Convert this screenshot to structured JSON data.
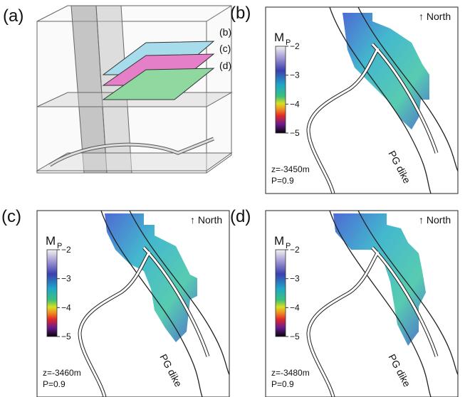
{
  "panels": [
    {
      "label": "(a)",
      "layers": [
        "(b)",
        "(c)",
        "(d)"
      ]
    },
    {
      "label": "(b)",
      "north": "↑ North",
      "colorbar_title": "M",
      "colorbar_sub": "P",
      "colorbar_ticks": [
        "−2",
        "−3",
        "−4",
        "−5"
      ],
      "dike": "PG dike",
      "depth": "z=-3450m",
      "probability": "P=0.9"
    },
    {
      "label": "(c)",
      "north": "↑ North",
      "colorbar_title": "M",
      "colorbar_sub": "P",
      "colorbar_ticks": [
        "−2",
        "−3",
        "−4",
        "−5"
      ],
      "dike": "PG dike",
      "depth": "z=-3460m",
      "probability": "P=0.9"
    },
    {
      "label": "(d)",
      "north": "↑ North",
      "colorbar_title": "M",
      "colorbar_sub": "P",
      "colorbar_ticks": [
        "−2",
        "−3",
        "−4",
        "−5"
      ],
      "dike": "PG dike",
      "depth": "z=-3480m",
      "probability": "P=0.9"
    }
  ]
}
